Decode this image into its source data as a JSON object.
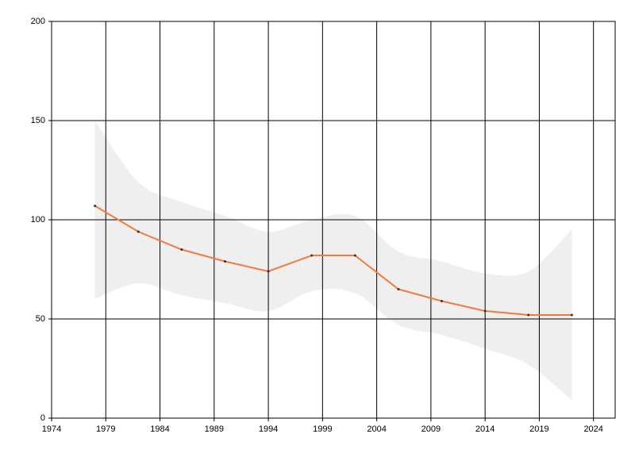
{
  "chart_data": {
    "type": "line",
    "x": [
      1978,
      1982,
      1986,
      1990,
      1994,
      1998,
      2002,
      2006,
      2010,
      2014,
      2018,
      2022
    ],
    "series": [
      {
        "color": "#f47a3c",
        "values": [
          107,
          94,
          85,
          79,
          74,
          82,
          82,
          65,
          59,
          54,
          52,
          52
        ]
      }
    ],
    "band": {
      "color": "#efefef",
      "upper": [
        150,
        119,
        109,
        102,
        94,
        100,
        102,
        84,
        79,
        73,
        74,
        95
      ],
      "lower": [
        60,
        68,
        62,
        58,
        54,
        64,
        63,
        47,
        42,
        35,
        27,
        9
      ]
    },
    "xlim": [
      1974,
      2026
    ],
    "xticks": [
      1974,
      1979,
      1984,
      1989,
      1994,
      1999,
      2004,
      2009,
      2014,
      2019,
      2024
    ],
    "ylim": [
      0,
      200
    ],
    "yticks": [
      0,
      50,
      100,
      150,
      200
    ],
    "grid": true,
    "marker_color": "#333333"
  }
}
